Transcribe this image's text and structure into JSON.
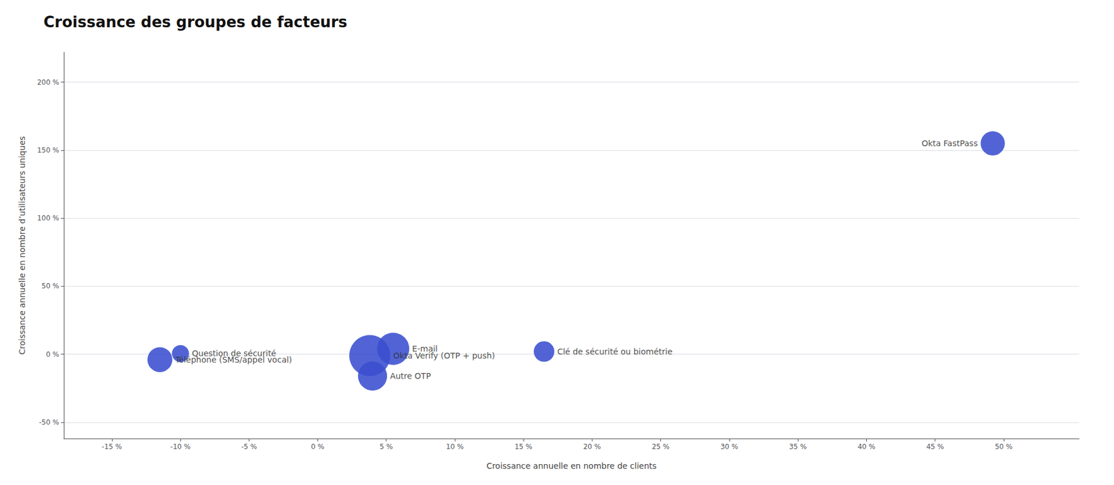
{
  "chart_data": {
    "type": "scatter",
    "title": "Croissance des groupes de facteurs",
    "xlabel": "Croissance annuelle en nombre de clients",
    "ylabel": "Croissance annuelle en nombre d’utilisateurs uniques",
    "color": "#3a4fcf",
    "points": [
      {
        "name": "Okta FastPass",
        "x": 0.492,
        "y": 1.55,
        "size": 900
      },
      {
        "name": "E-mail",
        "x": 0.055,
        "y": 0.04,
        "size": 1600
      },
      {
        "name": "Okta Verify (OTP + push)",
        "x": 0.038,
        "y": -0.01,
        "size": 2600
      },
      {
        "name": "Autre OTP",
        "x": 0.04,
        "y": -0.16,
        "size": 1300
      },
      {
        "name": "Clé de sécurité ou biométrie",
        "x": 0.165,
        "y": 0.02,
        "size": 650
      },
      {
        "name": "Question de sécurité",
        "x": -0.1,
        "y": 0.005,
        "size": 450
      },
      {
        "name": "Téléphone (SMS/appel vocal)",
        "x": -0.115,
        "y": -0.04,
        "size": 950
      }
    ],
    "xlim": [
      -0.185,
      0.555
    ],
    "ylim": [
      -0.62,
      2.22
    ],
    "xticks": [
      {
        "value": -0.15,
        "label": "-15 %"
      },
      {
        "value": -0.1,
        "label": "-10 %"
      },
      {
        "value": -0.05,
        "label": "-5 %"
      },
      {
        "value": 0.0,
        "label": "0 %"
      },
      {
        "value": 0.05,
        "label": "5 %"
      },
      {
        "value": 0.1,
        "label": "10 %"
      },
      {
        "value": 0.15,
        "label": "15 %"
      },
      {
        "value": 0.2,
        "label": "20 %"
      },
      {
        "value": 0.25,
        "label": "25 %"
      },
      {
        "value": 0.3,
        "label": "30 %"
      },
      {
        "value": 0.35,
        "label": "35 %"
      },
      {
        "value": 0.4,
        "label": "40 %"
      },
      {
        "value": 0.45,
        "label": "45 %"
      },
      {
        "value": 0.5,
        "label": "50 %"
      }
    ],
    "yticks": [
      {
        "value": -0.5,
        "label": "-50 %"
      },
      {
        "value": 0.0,
        "label": "0 %"
      },
      {
        "value": 0.5,
        "label": "50 %"
      },
      {
        "value": 1.0,
        "label": "100 %"
      },
      {
        "value": 1.5,
        "label": "150 %"
      },
      {
        "value": 2.0,
        "label": "200 %"
      }
    ],
    "grid": true
  }
}
